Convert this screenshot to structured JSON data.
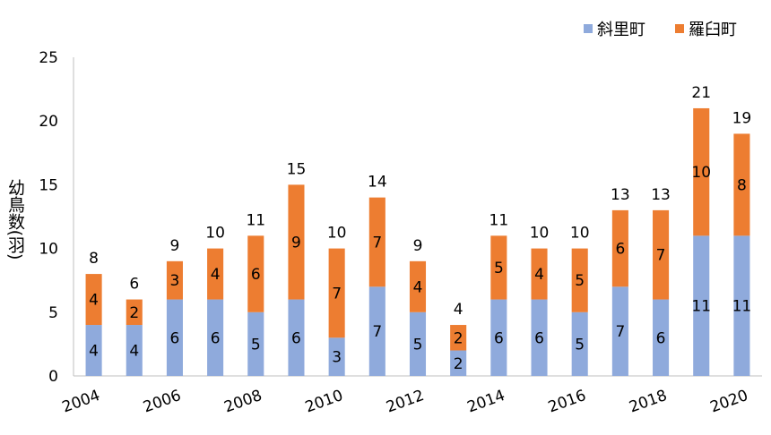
{
  "chart_data": {
    "type": "bar",
    "stacked": true,
    "title": "",
    "xlabel": "",
    "ylabel": "幼鳥数(羽)",
    "ylim": [
      0,
      25
    ],
    "yticks": [
      0,
      5,
      10,
      15,
      20,
      25
    ],
    "grid": false,
    "legend": "top-right",
    "categories": [
      2004,
      2005,
      2006,
      2007,
      2008,
      2009,
      2010,
      2011,
      2012,
      2013,
      2014,
      2015,
      2016,
      2017,
      2018,
      2019,
      2020
    ],
    "xtick_labels": [
      "2004",
      "2006",
      "2008",
      "2010",
      "2012",
      "2014",
      "2016",
      "2018",
      "2020"
    ],
    "series": [
      {
        "name": "斜里町",
        "color": "#8faadc",
        "values": [
          4,
          4,
          6,
          6,
          5,
          6,
          3,
          7,
          5,
          2,
          6,
          6,
          5,
          7,
          6,
          11,
          11
        ]
      },
      {
        "name": "羅臼町",
        "color": "#ed7d31",
        "values": [
          4,
          2,
          3,
          4,
          6,
          9,
          7,
          7,
          4,
          2,
          5,
          4,
          5,
          6,
          7,
          10,
          8
        ]
      }
    ],
    "totals": [
      8,
      6,
      9,
      10,
      11,
      15,
      10,
      14,
      9,
      4,
      11,
      10,
      10,
      13,
      13,
      21,
      19
    ]
  }
}
